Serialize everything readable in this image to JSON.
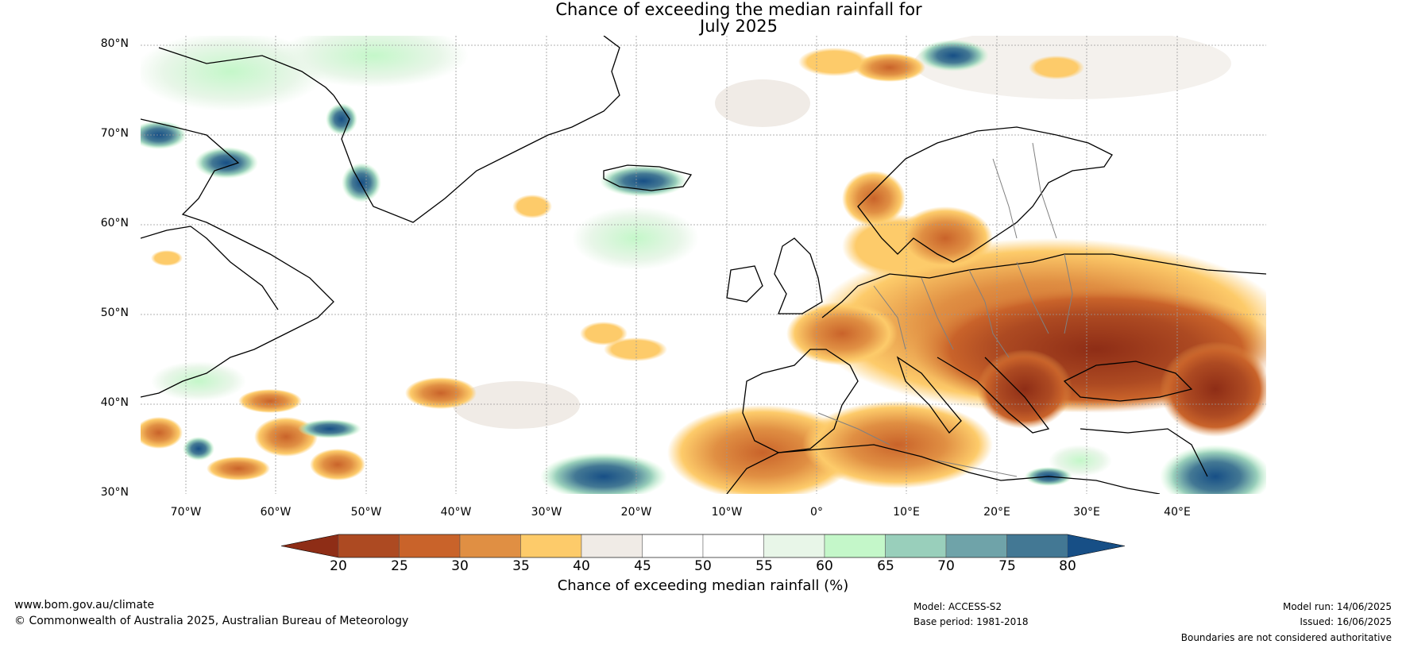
{
  "title": {
    "line1": "Chance of exceeding the median rainfall for",
    "line2": "July 2025"
  },
  "map": {
    "lat_labels": [
      "80°N",
      "70°N",
      "60°N",
      "50°N",
      "40°N",
      "30°N"
    ],
    "lon_labels": [
      "70°W",
      "60°W",
      "50°W",
      "40°W",
      "30°W",
      "20°W",
      "10°W",
      "0°",
      "10°E",
      "20°E",
      "30°E",
      "40°E"
    ],
    "colors": {
      "land_line": "#000000",
      "border_line": "#808080",
      "grid_line": "#999999"
    }
  },
  "colorbar": {
    "ticks": [
      "20",
      "25",
      "30",
      "35",
      "40",
      "45",
      "50",
      "55",
      "60",
      "65",
      "70",
      "75",
      "80"
    ],
    "colors": [
      "#8e2d16",
      "#ad4a22",
      "#c9632a",
      "#e08f43",
      "#fdcb6a",
      "#f0ebe6",
      "#ffffff",
      "#ffffff",
      "#e8f6e8",
      "#c4f7c9",
      "#99cfbb",
      "#6fa3a9",
      "#437894",
      "#174f86"
    ],
    "label": "Chance of exceeding median rainfall (%)"
  },
  "footer": {
    "website": "www.bom.gov.au/climate",
    "copyright": "© Commonwealth of Australia 2025, Australian Bureau of Meteorology",
    "model": "Model: ACCESS-S2",
    "base_period": "Base period: 1981-2018",
    "model_run": "Model run: 14/06/2025",
    "issued": "Issued: 16/06/2025",
    "disclaimer": "Boundaries are not considered authoritative"
  }
}
